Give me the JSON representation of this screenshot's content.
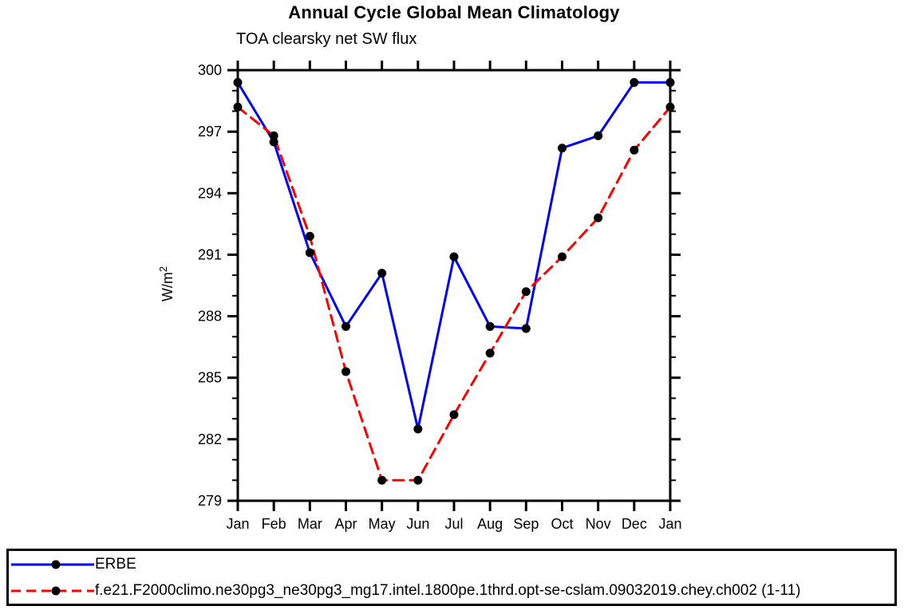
{
  "title": "Annual Cycle Global Mean Climatology",
  "subtitle": "TOA clearsky net SW flux",
  "colors": {
    "erbe_line": "#0000ff",
    "model_line": "#ff0000",
    "marker": "#000000",
    "axis": "#000000",
    "background": "#ffffff"
  },
  "chart_data": {
    "type": "line",
    "title": "Annual Cycle Global Mean Climatology",
    "subtitle": "TOA clearsky net SW flux",
    "xlabel": "",
    "ylabel": "W/m^2",
    "ylabel_base": "W/m",
    "ylabel_sup": "2",
    "x_tick_labels": [
      "Jan",
      "Feb",
      "Mar",
      "Apr",
      "May",
      "Jun",
      "Jul",
      "Aug",
      "Sep",
      "Oct",
      "Nov",
      "Dec",
      "Jan"
    ],
    "ylim": [
      279,
      300
    ],
    "y_major_tick_step": 3,
    "y_minor_tick_step": 1,
    "y_major_tick_labels": [
      "279",
      "282",
      "285",
      "288",
      "291",
      "294",
      "297",
      "300"
    ],
    "grid": false,
    "legend_position": "bottom-box",
    "series": [
      {
        "name": "ERBE",
        "color": "#0000ff",
        "style": "solid",
        "marker": "black-dot",
        "values": [
          299.4,
          296.5,
          291.1,
          287.5,
          290.1,
          282.5,
          290.9,
          287.5,
          287.4,
          296.2,
          296.8,
          299.4,
          299.4
        ]
      },
      {
        "name": "f.e21.F2000climo.ne30pg3_ne30pg3_mg17.intel.1800pe.1thrd.opt-se-cslam.09032019.chey.ch002 (1-11)",
        "color": "#ff0000",
        "style": "dashed",
        "marker": "black-dot",
        "values": [
          298.2,
          296.8,
          291.9,
          285.3,
          280.0,
          280.0,
          283.2,
          286.2,
          289.2,
          290.9,
          292.8,
          296.1,
          298.2
        ]
      }
    ]
  }
}
